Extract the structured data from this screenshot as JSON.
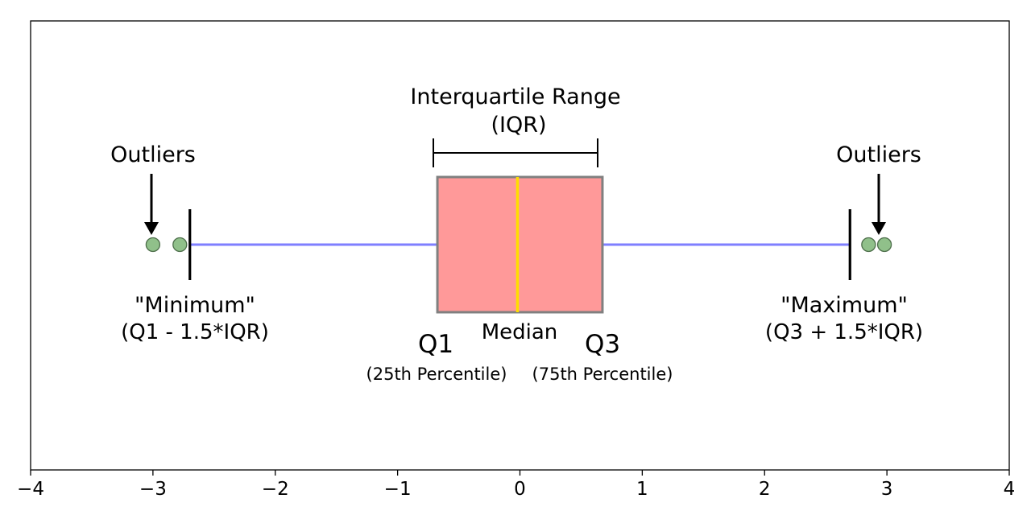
{
  "chart_data": {
    "type": "boxplot",
    "orientation": "horizontal",
    "xlim": [
      -4,
      4
    ],
    "x_ticks": [
      -4,
      -3,
      -2,
      -1,
      0,
      1,
      2,
      3,
      4
    ],
    "x_tick_labels": [
      "−4",
      "−3",
      "−2",
      "−1",
      "0",
      "1",
      "2",
      "3",
      "4"
    ],
    "grid": false,
    "box": {
      "whisker_low": -2.698,
      "q1": -0.6745,
      "median": -0.02,
      "q3": 0.6745,
      "whisker_high": 2.698,
      "outliers": [
        -3.0,
        -2.78,
        2.85,
        2.98
      ]
    },
    "colors": {
      "box_fill": "#ff9999",
      "box_edge": "#808080",
      "median": "#ffdd00",
      "whisker_line": "#7f7fff",
      "outlier_fill": "#90c08a",
      "outlier_edge": "#4d6e4a",
      "ink": "#000000"
    },
    "annotations": {
      "iqr_title": "Interquartile Range",
      "iqr_subtitle": "(IQR)",
      "outliers_left": "Outliers",
      "outliers_right": "Outliers",
      "minimum_label": "\"Minimum\"",
      "minimum_formula": "(Q1 - 1.5*IQR)",
      "maximum_label": "\"Maximum\"",
      "maximum_formula": "(Q3 + 1.5*IQR)",
      "q1_label": "Q1",
      "q1_desc": "(25th Percentile)",
      "median_label": "Median",
      "q3_label": "Q3",
      "q3_desc": "(75th Percentile)"
    }
  }
}
